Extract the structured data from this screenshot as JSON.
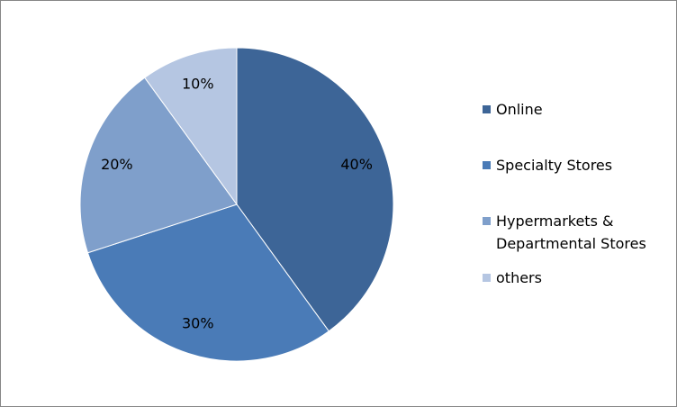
{
  "chart_data": {
    "type": "pie",
    "categories": [
      "Online",
      "Specialty Stores",
      "Hypermarkets & Departmental Stores",
      "others"
    ],
    "values": [
      40,
      30,
      20,
      10
    ],
    "value_labels": [
      "40%",
      "30%",
      "20%",
      "10%"
    ],
    "colors": [
      "#3d6597",
      "#4a7bb7",
      "#7f9fcb",
      "#b5c6e2"
    ],
    "legend": "right"
  }
}
